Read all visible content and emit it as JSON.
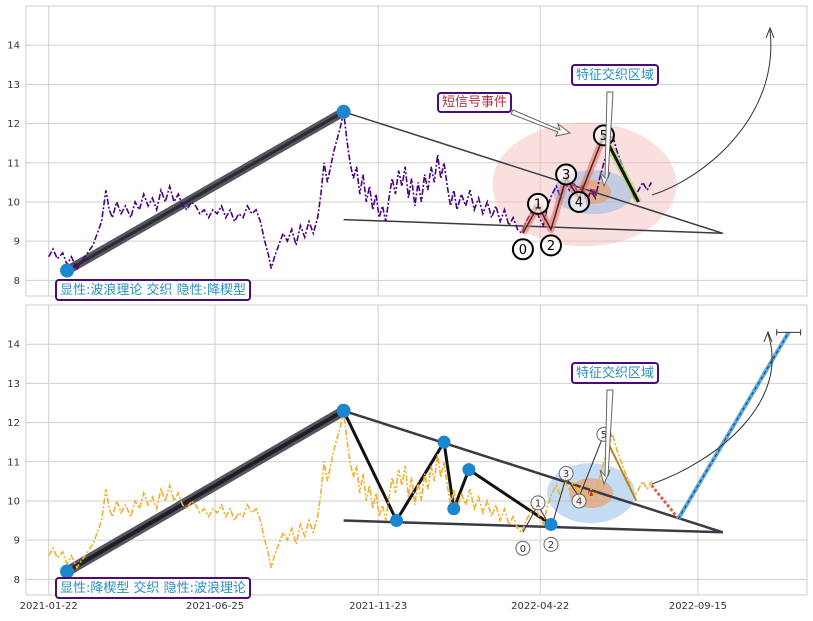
{
  "chart_data": [
    {
      "type": "line",
      "panel": "top",
      "ylim": [
        7.6,
        15.0
      ],
      "yticks": [
        8,
        9,
        10,
        11,
        12,
        13,
        14
      ],
      "xlim": [
        "2021-01-01",
        "2022-12-25"
      ],
      "grid": true,
      "colors": {
        "price": "#4b0082",
        "wave": "#3a3a46",
        "label_text": "#2a8fc0",
        "label_border": "#4b0a78",
        "event_text": "#b03040",
        "accent": "#1c86d0"
      },
      "series": [
        {
          "values": [
            [
              "2021-01-22",
              8.6
            ],
            [
              "2021-01-26",
              8.8
            ],
            [
              "2021-01-30",
              8.55
            ],
            [
              "2021-02-04",
              8.7
            ],
            [
              "2021-02-08",
              8.4
            ],
            [
              "2021-02-12",
              8.6
            ],
            [
              "2021-02-17",
              8.3
            ],
            [
              "2021-02-22",
              8.5
            ],
            [
              "2021-02-27",
              8.7
            ],
            [
              "2021-03-04",
              8.9
            ],
            [
              "2021-03-08",
              9.2
            ],
            [
              "2021-03-12",
              9.5
            ],
            [
              "2021-03-16",
              10.3
            ],
            [
              "2021-03-19",
              9.8
            ],
            [
              "2021-03-22",
              9.6
            ],
            [
              "2021-03-26",
              10.0
            ],
            [
              "2021-03-30",
              9.7
            ],
            [
              "2021-04-03",
              9.9
            ],
            [
              "2021-04-08",
              9.6
            ],
            [
              "2021-04-12",
              10.0
            ],
            [
              "2021-04-16",
              9.8
            ],
            [
              "2021-04-20",
              10.2
            ],
            [
              "2021-04-24",
              9.9
            ],
            [
              "2021-04-28",
              10.1
            ],
            [
              "2021-05-02",
              9.8
            ],
            [
              "2021-05-06",
              10.3
            ],
            [
              "2021-05-10",
              10.0
            ],
            [
              "2021-05-14",
              10.4
            ],
            [
              "2021-05-18",
              10.0
            ],
            [
              "2021-05-22",
              10.2
            ],
            [
              "2021-05-26",
              9.9
            ],
            [
              "2021-05-30",
              9.8
            ],
            [
              "2021-06-03",
              10.0
            ],
            [
              "2021-06-07",
              9.9
            ],
            [
              "2021-06-11",
              9.7
            ],
            [
              "2021-06-15",
              9.8
            ],
            [
              "2021-06-19",
              9.6
            ],
            [
              "2021-06-23",
              9.8
            ],
            [
              "2021-06-27",
              9.7
            ],
            [
              "2021-07-01",
              9.9
            ],
            [
              "2021-07-05",
              9.6
            ],
            [
              "2021-07-09",
              9.8
            ],
            [
              "2021-07-13",
              9.5
            ],
            [
              "2021-07-17",
              9.7
            ],
            [
              "2021-07-21",
              9.6
            ],
            [
              "2021-07-25",
              9.9
            ],
            [
              "2021-07-29",
              9.7
            ],
            [
              "2021-08-02",
              9.8
            ],
            [
              "2021-08-06",
              9.5
            ],
            [
              "2021-08-10",
              9.0
            ],
            [
              "2021-08-13",
              8.7
            ],
            [
              "2021-08-16",
              8.3
            ],
            [
              "2021-08-19",
              8.6
            ],
            [
              "2021-08-23",
              8.9
            ],
            [
              "2021-08-27",
              9.2
            ],
            [
              "2021-08-31",
              9.0
            ],
            [
              "2021-09-04",
              9.3
            ],
            [
              "2021-09-08",
              8.9
            ],
            [
              "2021-09-12",
              9.4
            ],
            [
              "2021-09-16",
              9.1
            ],
            [
              "2021-09-20",
              9.5
            ],
            [
              "2021-09-24",
              9.2
            ],
            [
              "2021-09-28",
              9.6
            ],
            [
              "2021-10-01",
              10.2
            ],
            [
              "2021-10-04",
              11.0
            ],
            [
              "2021-10-07",
              10.5
            ],
            [
              "2021-10-10",
              10.9
            ],
            [
              "2021-10-13",
              11.3
            ],
            [
              "2021-10-16",
              11.6
            ],
            [
              "2021-10-19",
              11.9
            ],
            [
              "2021-10-22",
              12.3
            ],
            [
              "2021-10-25",
              11.6
            ],
            [
              "2021-10-28",
              11.0
            ],
            [
              "2021-10-31",
              10.6
            ],
            [
              "2021-11-03",
              10.9
            ],
            [
              "2021-11-06",
              10.2
            ],
            [
              "2021-11-09",
              10.7
            ],
            [
              "2021-11-12",
              10.0
            ],
            [
              "2021-11-15",
              10.4
            ],
            [
              "2021-11-18",
              9.8
            ],
            [
              "2021-11-21",
              10.2
            ],
            [
              "2021-11-24",
              9.6
            ],
            [
              "2021-11-27",
              9.9
            ],
            [
              "2021-11-30",
              9.5
            ],
            [
              "2021-12-03",
              10.1
            ],
            [
              "2021-12-06",
              10.6
            ],
            [
              "2021-12-09",
              10.2
            ],
            [
              "2021-12-12",
              10.8
            ],
            [
              "2021-12-15",
              10.4
            ],
            [
              "2021-12-18",
              10.9
            ],
            [
              "2021-12-21",
              10.1
            ],
            [
              "2021-12-24",
              10.6
            ],
            [
              "2021-12-27",
              9.9
            ],
            [
              "2021-12-30",
              10.5
            ],
            [
              "2022-01-02",
              10.0
            ],
            [
              "2022-01-05",
              10.7
            ],
            [
              "2022-01-08",
              10.3
            ],
            [
              "2022-01-11",
              10.9
            ],
            [
              "2022-01-14",
              10.5
            ],
            [
              "2022-01-17",
              11.2
            ],
            [
              "2022-01-20",
              10.6
            ],
            [
              "2022-01-23",
              11.0
            ],
            [
              "2022-01-26",
              10.4
            ],
            [
              "2022-01-29",
              9.9
            ],
            [
              "2022-02-01",
              10.3
            ],
            [
              "2022-02-04",
              9.8
            ],
            [
              "2022-02-08",
              10.2
            ],
            [
              "2022-02-12",
              9.9
            ],
            [
              "2022-02-16",
              10.3
            ],
            [
              "2022-02-20",
              9.8
            ],
            [
              "2022-02-24",
              10.1
            ],
            [
              "2022-02-28",
              9.7
            ],
            [
              "2022-03-04",
              10.0
            ],
            [
              "2022-03-08",
              9.6
            ],
            [
              "2022-03-12",
              9.9
            ],
            [
              "2022-03-16",
              9.5
            ],
            [
              "2022-03-20",
              9.8
            ],
            [
              "2022-03-24",
              9.4
            ],
            [
              "2022-03-28",
              9.6
            ],
            [
              "2022-04-01",
              9.3
            ],
            [
              "2022-04-05",
              9.2
            ],
            [
              "2022-04-09",
              9.5
            ],
            [
              "2022-04-13",
              9.7
            ],
            [
              "2022-04-17",
              9.9
            ],
            [
              "2022-04-21",
              9.6
            ],
            [
              "2022-04-25",
              9.4
            ],
            [
              "2022-04-29",
              9.9
            ],
            [
              "2022-05-03",
              10.2
            ],
            [
              "2022-05-07",
              10.4
            ],
            [
              "2022-05-11",
              10.1
            ],
            [
              "2022-05-15",
              10.5
            ],
            [
              "2022-05-19",
              10.3
            ],
            [
              "2022-05-23",
              10.5
            ],
            [
              "2022-05-27",
              10.2
            ],
            [
              "2022-05-31",
              10.4
            ],
            [
              "2022-06-04",
              10.0
            ],
            [
              "2022-06-08",
              10.3
            ],
            [
              "2022-06-12",
              10.1
            ],
            [
              "2022-06-16",
              10.6
            ],
            [
              "2022-06-20",
              11.0
            ],
            [
              "2022-06-24",
              11.4
            ],
            [
              "2022-06-28",
              11.7
            ],
            [
              "2022-07-02",
              11.3
            ],
            [
              "2022-07-06",
              11.0
            ],
            [
              "2022-07-10",
              10.7
            ],
            [
              "2022-07-14",
              10.4
            ],
            [
              "2022-07-18",
              10.1
            ],
            [
              "2022-07-22",
              10.3
            ],
            [
              "2022-07-26",
              10.5
            ],
            [
              "2022-07-30",
              10.3
            ],
            [
              "2022-08-03",
              10.5
            ]
          ]
        }
      ],
      "wave_points": {
        "labels": [
          "0",
          "1",
          "2",
          "3",
          "4",
          "5"
        ],
        "x": [
          "2022-04-06",
          "2022-04-20",
          "2022-05-02",
          "2022-05-16",
          "2022-05-28",
          "2022-06-20"
        ],
        "y": [
          9.2,
          9.9,
          9.3,
          10.6,
          10.1,
          11.7
        ]
      },
      "annotations": {
        "label_box": "显性:波浪理论 交织 隐性:降楔型",
        "event_box": "短信号事件",
        "feature_box": "特征交织区域"
      }
    },
    {
      "type": "line",
      "panel": "bottom",
      "ylim": [
        7.6,
        15.0
      ],
      "yticks": [
        8,
        9,
        10,
        11,
        12,
        13,
        14
      ],
      "xlim": [
        "2021-01-01",
        "2022-12-25"
      ],
      "xticks": [
        "2021-01-22",
        "2021-06-25",
        "2021-11-23",
        "2022-04-22",
        "2022-09-15"
      ],
      "grid": true,
      "colors": {
        "price": "#f0b030",
        "wave": "#3a3a46",
        "label_text": "#2a8fc0",
        "label_border": "#4b0a78",
        "accent": "#1c86d0"
      },
      "wedge_points": {
        "x": [
          "2021-12-10",
          "2022-01-23",
          "2022-02-01",
          "2022-02-15",
          "2022-05-02"
        ],
        "y": [
          9.5,
          11.5,
          9.8,
          10.8,
          9.4
        ]
      },
      "wave_points": {
        "labels": [
          "0",
          "1",
          "2",
          "3",
          "4",
          "5"
        ],
        "x": [
          "2022-04-06",
          "2022-04-20",
          "2022-05-02",
          "2022-05-16",
          "2022-05-28",
          "2022-06-20"
        ],
        "y": [
          9.2,
          9.9,
          9.3,
          10.6,
          10.1,
          11.7
        ]
      },
      "target": {
        "x": "2022-12-08",
        "y": 14.3
      },
      "annotations": {
        "label_box": "显性:降楔型 交织 隐性:波浪理论",
        "feature_box": "特征交织区域"
      }
    }
  ]
}
